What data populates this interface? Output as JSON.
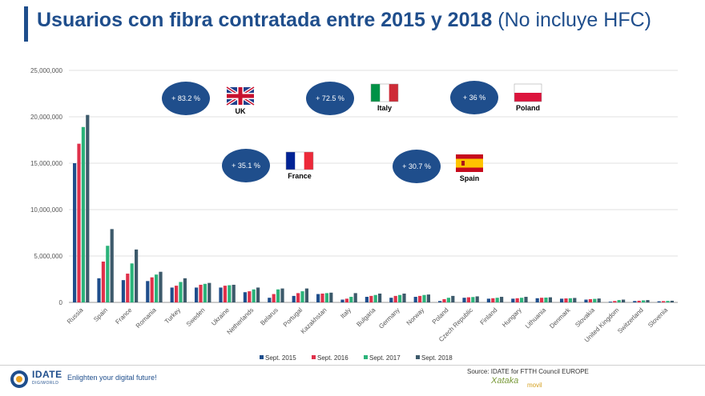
{
  "header": {
    "title_bold": "Usuarios con fibra contratada entre 2015 y 2018",
    "title_sub": "(No incluye HFC)"
  },
  "chart_data": {
    "type": "bar",
    "categories": [
      "Russia",
      "Spain",
      "France",
      "Romania",
      "Turkey",
      "Sweden",
      "Ukraine",
      "Netherlands",
      "Belarus",
      "Portugal",
      "Kazakhstan",
      "Italy",
      "Bulgaria",
      "Germany",
      "Norway",
      "Poland",
      "Czech Republic",
      "Finland",
      "Hungary",
      "Lithuania",
      "Denmark",
      "Slovakia",
      "United Kingdom",
      "Switzerland",
      "Slovenia"
    ],
    "series": [
      {
        "name": "Sept. 2015",
        "color": "#1f4e8c",
        "values": [
          15000000,
          2600000,
          2400000,
          2300000,
          1600000,
          1600000,
          1600000,
          1100000,
          500000,
          700000,
          900000,
          300000,
          600000,
          500000,
          600000,
          150000,
          500000,
          400000,
          400000,
          450000,
          400000,
          300000,
          80000,
          150000,
          120000
        ]
      },
      {
        "name": "Sept. 2016",
        "color": "#e0314b",
        "values": [
          17100000,
          4400000,
          3100000,
          2700000,
          1800000,
          1900000,
          1800000,
          1200000,
          900000,
          1000000,
          950000,
          400000,
          700000,
          700000,
          700000,
          350000,
          550000,
          450000,
          450000,
          500000,
          430000,
          350000,
          150000,
          180000,
          140000
        ]
      },
      {
        "name": "Sept. 2017",
        "color": "#2bb37a",
        "values": [
          18900000,
          6100000,
          4200000,
          3000000,
          2200000,
          2000000,
          1850000,
          1400000,
          1400000,
          1200000,
          1000000,
          600000,
          800000,
          800000,
          800000,
          500000,
          580000,
          500000,
          500000,
          520000,
          450000,
          380000,
          250000,
          220000,
          160000
        ]
      },
      {
        "name": "Sept. 2018",
        "color": "#3d5a6b",
        "values": [
          20200000,
          7900000,
          5700000,
          3300000,
          2600000,
          2100000,
          1900000,
          1600000,
          1500000,
          1500000,
          1050000,
          1000000,
          950000,
          950000,
          850000,
          700000,
          650000,
          600000,
          600000,
          550000,
          480000,
          420000,
          300000,
          250000,
          180000
        ]
      }
    ],
    "ylim": [
      0,
      25000000
    ],
    "yticks": [
      "0",
      "5,000,000",
      "10,000,000",
      "15,000,000",
      "20,000,000",
      "25,000,000"
    ],
    "legend_position": "bottom",
    "annotations": [
      {
        "label": "+ 83.2 %",
        "country": "UK"
      },
      {
        "label": "+ 72.5 %",
        "country": "Italy"
      },
      {
        "label": "+ 36 %",
        "country": "Poland"
      },
      {
        "label": "+ 35.1 %",
        "country": "France"
      },
      {
        "label": "+ 30.7 %",
        "country": "Spain"
      }
    ]
  },
  "footer": {
    "source": "Source: IDATE for FTTH Council EUROPE",
    "brand": "IDATE",
    "brand_sub": "DIGIWORLD",
    "tagline": "Enlighten your digital future!",
    "partner": "Xataka",
    "partner_sub": "movil"
  }
}
